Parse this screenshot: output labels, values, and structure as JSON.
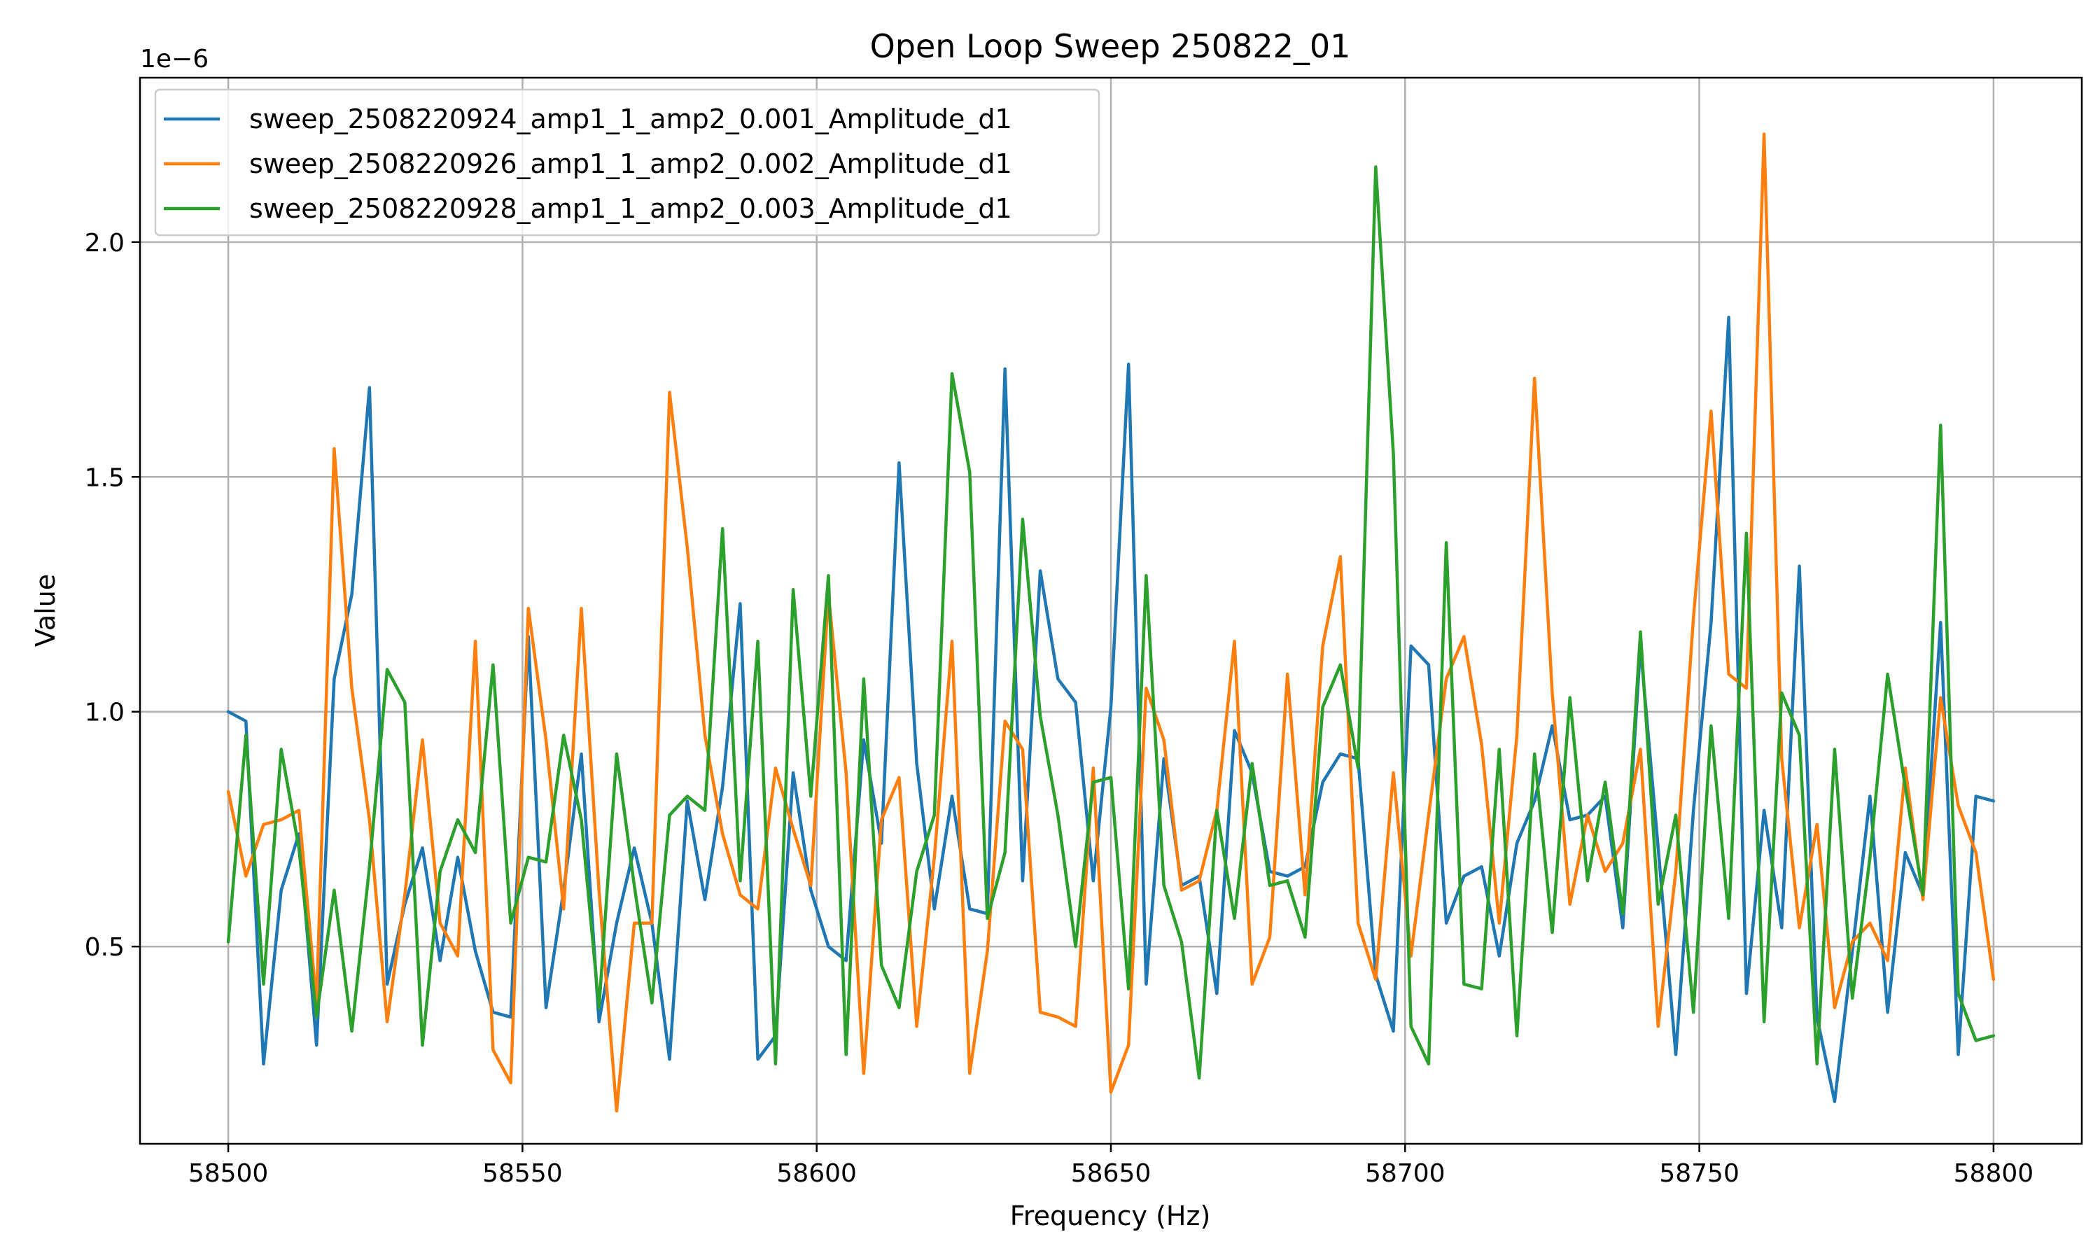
{
  "chart_data": {
    "type": "line",
    "title": "Open Loop Sweep 250822_01",
    "xlabel": "Frequency (Hz)",
    "ylabel": "Value",
    "y_offset_label": "1e−6",
    "xlim": [
      58485,
      58815
    ],
    "ylim": [
      0.08,
      2.35
    ],
    "x_ticks": [
      58500,
      58550,
      58600,
      58650,
      58700,
      58750,
      58800
    ],
    "y_ticks": [
      0.5,
      1.0,
      1.5,
      2.0
    ],
    "x_tick_labels": [
      "58500",
      "58550",
      "58600",
      "58650",
      "58700",
      "58750",
      "58800"
    ],
    "y_tick_labels": [
      "0.5",
      "1.0",
      "1.5",
      "2.0"
    ],
    "grid": true,
    "legend_position": "upper-left",
    "x": [
      58500,
      58503,
      58506,
      58509,
      58512,
      58515,
      58518,
      58521,
      58524,
      58527,
      58530,
      58533,
      58536,
      58539,
      58542,
      58545,
      58548,
      58551,
      58554,
      58557,
      58560,
      58563,
      58566,
      58569,
      58572,
      58575,
      58578,
      58581,
      58584,
      58587,
      58590,
      58593,
      58596,
      58599,
      58602,
      58605,
      58608,
      58611,
      58614,
      58617,
      58620,
      58623,
      58626,
      58629,
      58632,
      58635,
      58638,
      58641,
      58644,
      58647,
      58650,
      58653,
      58656,
      58659,
      58662,
      58665,
      58668,
      58671,
      58674,
      58677,
      58680,
      58683,
      58686,
      58689,
      58692,
      58695,
      58698,
      58701,
      58704,
      58707,
      58710,
      58713,
      58716,
      58719,
      58722,
      58725,
      58728,
      58731,
      58734,
      58737,
      58740,
      58743,
      58746,
      58749,
      58752,
      58755,
      58758,
      58761,
      58764,
      58767,
      58770,
      58773,
      58776,
      58779,
      58782,
      58785,
      58788,
      58791,
      58794,
      58797,
      58800
    ],
    "series": [
      {
        "name": "sweep_2508220924_amp1_1_amp2_0.001_Amplitude_d1",
        "color": "#1f77b4",
        "values": [
          1.0,
          0.98,
          0.25,
          0.62,
          0.74,
          0.29,
          1.07,
          1.25,
          1.69,
          0.42,
          0.59,
          0.71,
          0.47,
          0.69,
          0.49,
          0.36,
          0.35,
          1.16,
          0.37,
          0.62,
          0.91,
          0.34,
          0.55,
          0.71,
          0.55,
          0.26,
          0.81,
          0.6,
          0.84,
          1.23,
          0.26,
          0.31,
          0.87,
          0.62,
          0.5,
          0.47,
          0.94,
          0.72,
          1.53,
          0.89,
          0.58,
          0.82,
          0.58,
          0.57,
          1.73,
          0.64,
          1.3,
          1.07,
          1.02,
          0.64,
          1.01,
          1.74,
          0.42,
          0.9,
          0.63,
          0.65,
          0.4,
          0.96,
          0.87,
          0.66,
          0.65,
          0.67,
          0.85,
          0.91,
          0.9,
          0.44,
          0.32,
          1.14,
          1.1,
          0.55,
          0.65,
          0.67,
          0.48,
          0.72,
          0.81,
          0.97,
          0.77,
          0.78,
          0.82,
          0.54,
          1.14,
          0.71,
          0.27,
          0.79,
          1.19,
          1.84,
          0.4,
          0.79,
          0.54,
          1.31,
          0.35,
          0.17,
          0.49,
          0.82,
          0.36,
          0.7,
          0.61,
          1.19,
          0.27,
          0.82,
          0.81
        ]
      },
      {
        "name": "sweep_2508220926_amp1_1_amp2_0.002_Amplitude_d1",
        "color": "#ff7f0e",
        "values": [
          0.83,
          0.65,
          0.76,
          0.77,
          0.79,
          0.38,
          1.56,
          1.05,
          0.77,
          0.34,
          0.61,
          0.94,
          0.55,
          0.48,
          1.15,
          0.28,
          0.21,
          1.22,
          0.94,
          0.58,
          1.22,
          0.62,
          0.15,
          0.55,
          0.55,
          1.68,
          1.35,
          0.95,
          0.74,
          0.61,
          0.58,
          0.88,
          0.75,
          0.63,
          1.25,
          0.87,
          0.23,
          0.77,
          0.86,
          0.33,
          0.69,
          1.15,
          0.23,
          0.49,
          0.98,
          0.92,
          0.36,
          0.35,
          0.33,
          0.88,
          0.19,
          0.29,
          1.05,
          0.94,
          0.62,
          0.64,
          0.79,
          1.15,
          0.42,
          0.52,
          1.08,
          0.61,
          1.14,
          1.33,
          0.55,
          0.43,
          0.87,
          0.48,
          0.78,
          1.07,
          1.16,
          0.93,
          0.55,
          0.95,
          1.71,
          1.04,
          0.59,
          0.78,
          0.66,
          0.72,
          0.92,
          0.33,
          0.66,
          1.2,
          1.64,
          1.08,
          1.05,
          2.23,
          0.9,
          0.54,
          0.76,
          0.37,
          0.51,
          0.55,
          0.47,
          0.88,
          0.6,
          1.03,
          0.8,
          0.7,
          0.43
        ]
      },
      {
        "name": "sweep_2508220928_amp1_1_amp2_0.003_Amplitude_d1",
        "color": "#2ca02c",
        "values": [
          0.51,
          0.95,
          0.42,
          0.92,
          0.71,
          0.35,
          0.62,
          0.32,
          0.67,
          1.09,
          1.02,
          0.29,
          0.66,
          0.77,
          0.7,
          1.1,
          0.55,
          0.69,
          0.68,
          0.95,
          0.77,
          0.37,
          0.91,
          0.63,
          0.38,
          0.78,
          0.82,
          0.79,
          1.39,
          0.64,
          1.15,
          0.25,
          1.26,
          0.82,
          1.29,
          0.27,
          1.07,
          0.46,
          0.37,
          0.66,
          0.78,
          1.72,
          1.51,
          0.56,
          0.7,
          1.41,
          0.99,
          0.78,
          0.5,
          0.85,
          0.86,
          0.41,
          1.29,
          0.63,
          0.51,
          0.22,
          0.79,
          0.56,
          0.89,
          0.63,
          0.64,
          0.52,
          1.01,
          1.1,
          0.88,
          2.16,
          1.55,
          0.33,
          0.25,
          1.36,
          0.42,
          0.41,
          0.92,
          0.31,
          0.91,
          0.53,
          1.03,
          0.64,
          0.85,
          0.57,
          1.17,
          0.59,
          0.78,
          0.36,
          0.97,
          0.56,
          1.38,
          0.34,
          1.04,
          0.95,
          0.25,
          0.92,
          0.39,
          0.69,
          1.08,
          0.84,
          0.61,
          1.61,
          0.4,
          0.3,
          0.31
        ]
      }
    ]
  }
}
